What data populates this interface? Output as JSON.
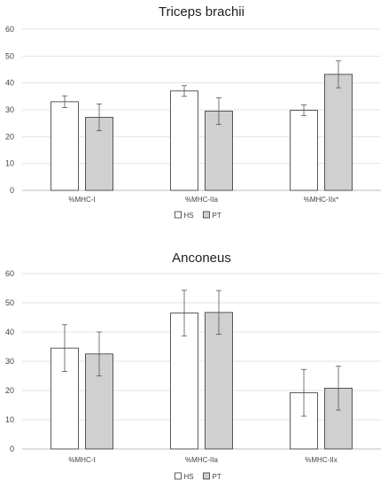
{
  "chart_data": [
    {
      "type": "bar",
      "title": "Triceps brachii",
      "categories": [
        "%MHC-I",
        "%MHC-IIa",
        "%MHC-IIx*"
      ],
      "ylim": [
        0,
        60
      ],
      "yticks": [
        0,
        10,
        20,
        30,
        40,
        50,
        60
      ],
      "grid": true,
      "legend_position": "bottom",
      "series": [
        {
          "name": "HS",
          "color": "#ffffff",
          "values": [
            33,
            37,
            29.8
          ],
          "errors": [
            2.2,
            2,
            2
          ]
        },
        {
          "name": "PT",
          "color": "#d0d0d0",
          "values": [
            27.2,
            29.5,
            43.2
          ],
          "errors": [
            5,
            5,
            5
          ]
        }
      ]
    },
    {
      "type": "bar",
      "title": "Anconeus",
      "categories": [
        "%MHC-I",
        "%MHC-IIa",
        "%MHC-IIx"
      ],
      "ylim": [
        0,
        60
      ],
      "yticks": [
        0,
        10,
        20,
        30,
        40,
        50,
        60
      ],
      "grid": true,
      "legend_position": "bottom",
      "series": [
        {
          "name": "HS",
          "color": "#ffffff",
          "values": [
            34.5,
            46.5,
            19.2
          ],
          "errors": [
            8,
            7.8,
            8
          ]
        },
        {
          "name": "PT",
          "color": "#d0d0d0",
          "values": [
            32.5,
            46.7,
            20.8
          ],
          "errors": [
            7.5,
            7.5,
            7.5
          ]
        }
      ]
    }
  ]
}
